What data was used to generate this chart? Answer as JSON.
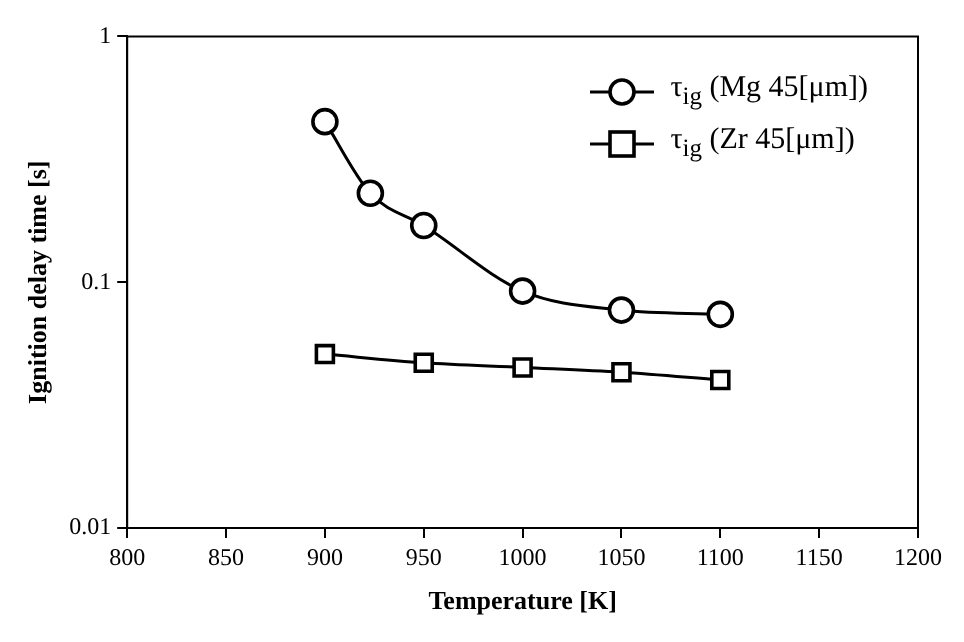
{
  "chart_data": {
    "type": "line",
    "xlabel": "Temperature [K]",
    "ylabel": "Ignition delay time [s]",
    "xlim": [
      800,
      1200
    ],
    "xticks": [
      800,
      850,
      900,
      950,
      1000,
      1050,
      1100,
      1150,
      1200
    ],
    "ylim": [
      0.01,
      1
    ],
    "yticks": [
      0.01,
      0.1,
      1
    ],
    "log": "y",
    "legend": "top right",
    "series": [
      {
        "name": "τ$_{ig}$ (Mg 45[μm])",
        "color": "#000000",
        "marker": "circle",
        "x": [
          900,
          923,
          950,
          1000,
          1050,
          1100
        ],
        "values": [
          0.45,
          0.23,
          0.17,
          0.092,
          0.077,
          0.074
        ]
      },
      {
        "name": "τ$_{ig}$ (Zr 45[μm])",
        "color": "#000000",
        "marker": "square",
        "x": [
          900,
          950,
          1000,
          1050,
          1100
        ],
        "values": [
          0.051,
          0.047,
          0.045,
          0.043,
          0.04
        ]
      }
    ]
  }
}
